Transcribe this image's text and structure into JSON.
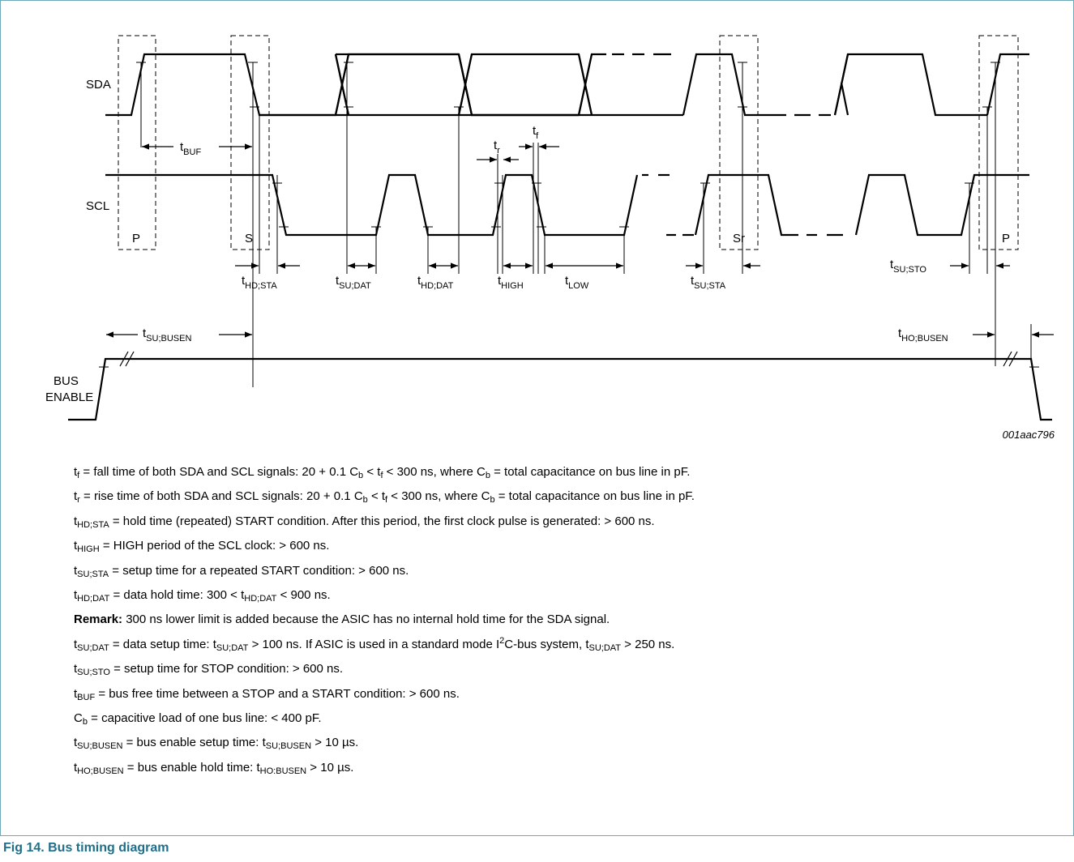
{
  "diagram": {
    "signals": {
      "sda": "SDA",
      "scl": "SCL",
      "bus_enable_line1": "BUS",
      "bus_enable_line2": "ENABLE"
    },
    "conditions": {
      "p_start": "P",
      "s": "S",
      "sr": "Sr",
      "p_end": "P"
    },
    "timing_labels": {
      "buf": {
        "t": "t",
        "sub": "BUF"
      },
      "tr": {
        "t": "t",
        "sub": "r"
      },
      "tf": {
        "t": "t",
        "sub": "f"
      },
      "hd_sta": {
        "t": "t",
        "sub": "HD;STA"
      },
      "su_dat": {
        "t": "t",
        "sub": "SU;DAT"
      },
      "hd_dat": {
        "t": "t",
        "sub": "HD;DAT"
      },
      "high": {
        "t": "t",
        "sub": "HIGH"
      },
      "low": {
        "t": "t",
        "sub": "LOW"
      },
      "su_sta": {
        "t": "t",
        "sub": "SU;STA"
      },
      "su_sto": {
        "t": "t",
        "sub": "SU;STO"
      },
      "su_busen": {
        "t": "t",
        "sub": "SU;BUSEN"
      },
      "ho_busen": {
        "t": "t",
        "sub": "HO;BUSEN"
      }
    },
    "figure_id": "001aac796"
  },
  "notes": [
    {
      "parts": [
        {
          "t": "t"
        },
        {
          "sub": "f"
        },
        {
          "t": " = fall time of both SDA and SCL signals: 20 + 0.1 C"
        },
        {
          "sub": "b"
        },
        {
          "t": " < t"
        },
        {
          "sub": "f"
        },
        {
          "t": " < 300 ns, where C"
        },
        {
          "sub": "b"
        },
        {
          "t": " = total capacitance on bus line in pF."
        }
      ]
    },
    {
      "parts": [
        {
          "t": "t"
        },
        {
          "sub": "r"
        },
        {
          "t": " = rise time of both SDA and SCL signals: 20 + 0.1 C"
        },
        {
          "sub": "b"
        },
        {
          "t": " < t"
        },
        {
          "sub": "f"
        },
        {
          "t": " < 300 ns, where C"
        },
        {
          "sub": "b"
        },
        {
          "t": " = total capacitance on bus line in pF."
        }
      ]
    },
    {
      "parts": [
        {
          "t": "t"
        },
        {
          "sub": "HD;STA"
        },
        {
          "t": " = hold time (repeated) START condition. After this period, the first clock pulse is generated: > 600 ns."
        }
      ]
    },
    {
      "parts": [
        {
          "t": "t"
        },
        {
          "sub": "HIGH"
        },
        {
          "t": " = HIGH period of the SCL clock: > 600 ns."
        }
      ]
    },
    {
      "parts": [
        {
          "t": "t"
        },
        {
          "sub": "SU;STA"
        },
        {
          "t": " = setup time for a repeated START condition: > 600 ns."
        }
      ]
    },
    {
      "parts": [
        {
          "t": "t"
        },
        {
          "sub": "HD;DAT"
        },
        {
          "t": " = data hold time: 300 < t"
        },
        {
          "sub": "HD;DAT"
        },
        {
          "t": " < 900 ns."
        }
      ]
    },
    {
      "parts": [
        {
          "b": "Remark:"
        },
        {
          "t": " 300 ns lower limit is added because the ASIC has no internal hold time for the SDA signal."
        }
      ]
    },
    {
      "parts": [
        {
          "t": "t"
        },
        {
          "sub": "SU;DAT"
        },
        {
          "t": " = data setup time: t"
        },
        {
          "sub": "SU;DAT"
        },
        {
          "t": " > 100 ns. If ASIC is used in a standard mode I"
        },
        {
          "sup": "2"
        },
        {
          "t": "C-bus system, t"
        },
        {
          "sub": "SU;DAT"
        },
        {
          "t": " > 250 ns."
        }
      ]
    },
    {
      "parts": [
        {
          "t": "t"
        },
        {
          "sub": "SU;STO"
        },
        {
          "t": " = setup time for STOP condition: > 600 ns."
        }
      ]
    },
    {
      "parts": [
        {
          "t": "t"
        },
        {
          "sub": "BUF"
        },
        {
          "t": " = bus free time between a STOP and a START condition: > 600 ns."
        }
      ]
    },
    {
      "parts": [
        {
          "t": "C"
        },
        {
          "sub": "b"
        },
        {
          "t": " = capacitive load of one bus line: < 400 pF."
        }
      ]
    },
    {
      "parts": [
        {
          "t": "t"
        },
        {
          "sub": "SU;BUSEN"
        },
        {
          "t": " = bus enable setup time: t"
        },
        {
          "sub": "SU;BUSEN"
        },
        {
          "t": " > 10 µs."
        }
      ]
    },
    {
      "parts": [
        {
          "t": "t"
        },
        {
          "sub": "HO;BUSEN"
        },
        {
          "t": " = bus enable hold time: t"
        },
        {
          "sub": "HO:BUSEN"
        },
        {
          "t": " > 10 µs."
        }
      ]
    }
  ],
  "caption": "Fig 14. Bus timing diagram"
}
